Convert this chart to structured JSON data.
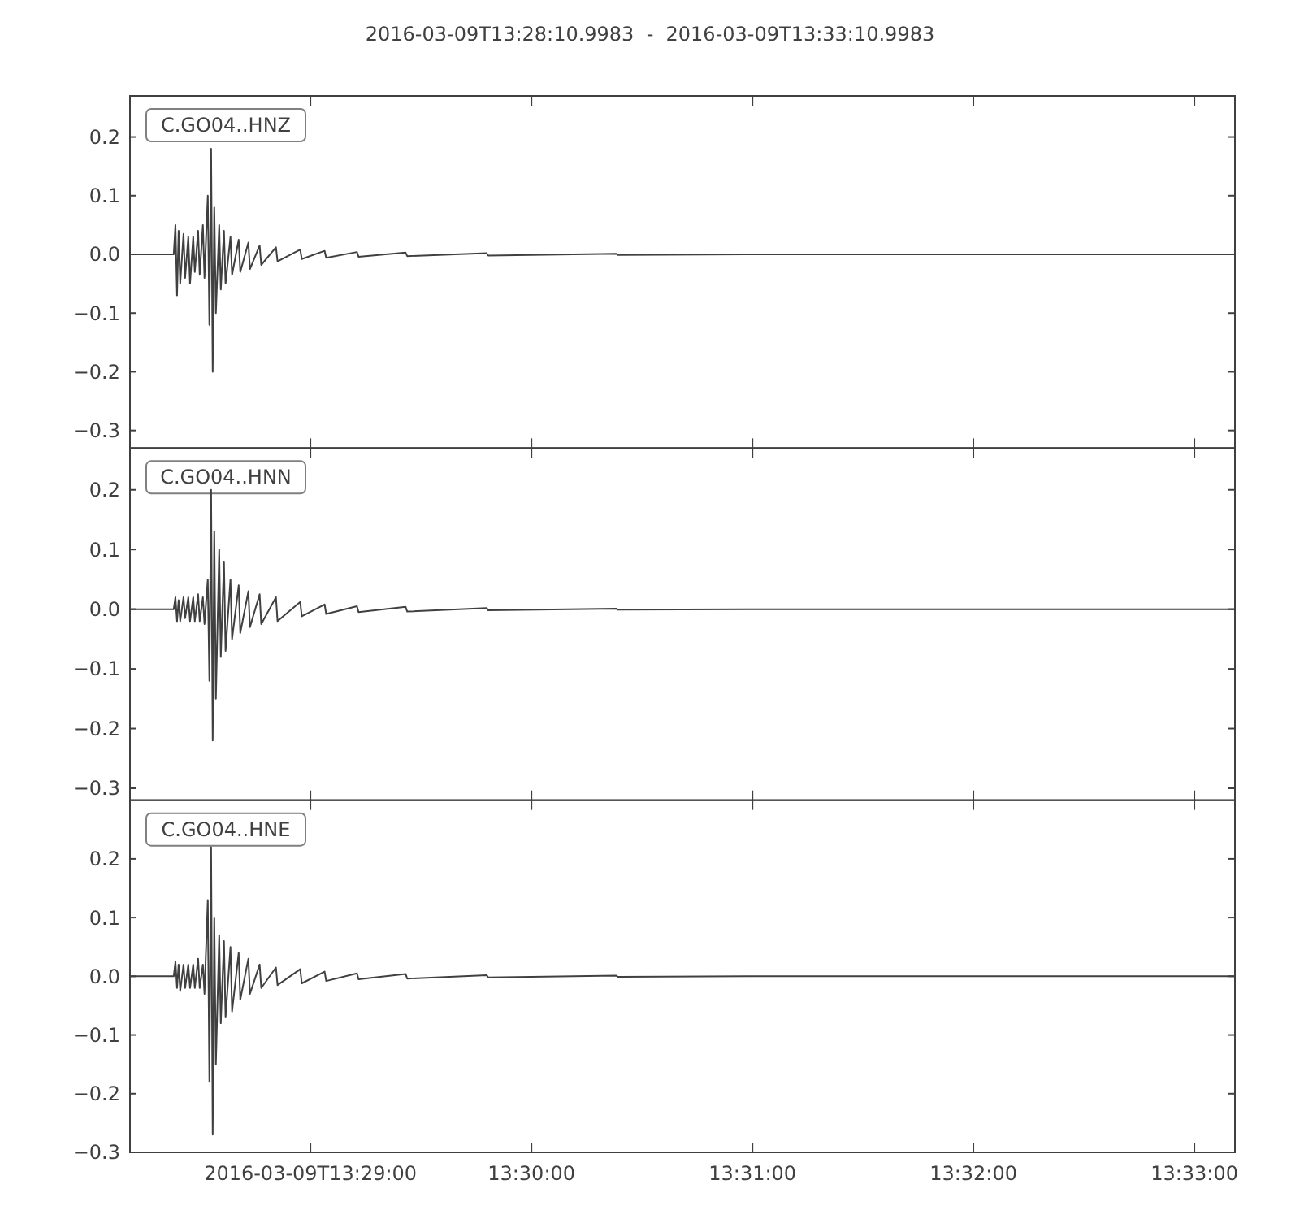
{
  "chart_data": [
    {
      "type": "line",
      "title": "2016-03-09T13:28:10.9983  -  2016-03-09T13:33:10.9983",
      "legend": "top left",
      "tick_labels": "y",
      "xlim": [
        13.46972,
        13.55306
      ],
      "xticks": [
        {
          "value": 13.48333,
          "label": null
        },
        {
          "value": 13.5,
          "label": null
        },
        {
          "value": 13.51667,
          "label": null
        },
        {
          "value": 13.53333,
          "label": null
        },
        {
          "value": 13.55,
          "label": null
        }
      ],
      "ylim": [
        -0.33,
        0.27
      ],
      "yticks": [
        {
          "value": -0.3,
          "label": "−0.3"
        },
        {
          "value": -0.2,
          "label": "−0.2"
        },
        {
          "value": -0.1,
          "label": "−0.1"
        },
        {
          "value": 0,
          "label": "0.0"
        },
        {
          "value": 0.1,
          "label": "0.1"
        },
        {
          "value": 0.2,
          "label": "0.2"
        }
      ],
      "x": [
        13.46972,
        13.47302,
        13.47315,
        13.47327,
        13.47339,
        13.47351,
        13.47376,
        13.47388,
        13.47412,
        13.47425,
        13.47449,
        13.47461,
        13.47486,
        13.47498,
        13.47522,
        13.47534,
        13.47559,
        13.47571,
        13.47584,
        13.47596,
        13.47608,
        13.4762,
        13.47645,
        13.47657,
        13.47681,
        13.47693,
        13.4773,
        13.47742,
        13.47792,
        13.47804,
        13.47865,
        13.47877,
        13.4795,
        13.47962,
        13.48073,
        13.48085,
        13.48256,
        13.48268,
        13.4844,
        13.48452,
        13.48684,
        13.48696,
        13.49051,
        13.49063,
        13.49662,
        13.49674,
        13.5064,
        13.50652,
        13.51619,
        13.553
      ],
      "series": [
        {
          "name": "C.GO04..HNZ",
          "color": "#404040",
          "values": [
            0,
            0,
            0.05,
            -0.07,
            0.04,
            -0.05,
            0.035,
            -0.04,
            0.03,
            -0.05,
            0.03,
            -0.03,
            0.04,
            -0.035,
            0.05,
            -0.04,
            0.1,
            -0.12,
            0.18,
            -0.2,
            0.08,
            -0.1,
            0.05,
            -0.06,
            0.04,
            -0.05,
            0.03,
            -0.035,
            0.025,
            -0.03,
            0.02,
            -0.025,
            0.015,
            -0.018,
            0.012,
            -0.012,
            0.008,
            -0.008,
            0.006,
            -0.006,
            0.004,
            -0.004,
            0.003,
            -0.003,
            0.002,
            -0.002,
            0.001,
            -0.001,
            0,
            0
          ]
        }
      ]
    },
    {
      "type": "line",
      "legend": "top left",
      "tick_labels": "y",
      "xlim": [
        13.46972,
        13.55306
      ],
      "xticks": [
        {
          "value": 13.48333,
          "label": null
        },
        {
          "value": 13.5,
          "label": null
        },
        {
          "value": 13.51667,
          "label": null
        },
        {
          "value": 13.53333,
          "label": null
        },
        {
          "value": 13.55,
          "label": null
        }
      ],
      "ylim": [
        -0.32,
        0.27
      ],
      "yticks": [
        {
          "value": -0.3,
          "label": "−0.3"
        },
        {
          "value": -0.2,
          "label": "−0.2"
        },
        {
          "value": -0.1,
          "label": "−0.1"
        },
        {
          "value": 0,
          "label": "0.0"
        },
        {
          "value": 0.1,
          "label": "0.1"
        },
        {
          "value": 0.2,
          "label": "0.2"
        }
      ],
      "x": [
        13.46972,
        13.47302,
        13.47315,
        13.47327,
        13.47339,
        13.47351,
        13.47376,
        13.47388,
        13.47412,
        13.47425,
        13.47449,
        13.47461,
        13.47486,
        13.47498,
        13.47522,
        13.47534,
        13.47559,
        13.47571,
        13.47584,
        13.47596,
        13.47608,
        13.4762,
        13.47645,
        13.47657,
        13.47681,
        13.47693,
        13.4773,
        13.47742,
        13.47792,
        13.47804,
        13.47865,
        13.47877,
        13.4795,
        13.47962,
        13.48073,
        13.48085,
        13.48256,
        13.48268,
        13.4844,
        13.48452,
        13.48684,
        13.48696,
        13.49051,
        13.49063,
        13.49662,
        13.49674,
        13.5064,
        13.50652,
        13.51619,
        13.553
      ],
      "series": [
        {
          "name": "C.GO04..HNN",
          "color": "#404040",
          "values": [
            0,
            0,
            0.02,
            -0.02,
            0.015,
            -0.02,
            0.02,
            -0.015,
            0.02,
            -0.02,
            0.02,
            -0.02,
            0.025,
            -0.02,
            0.02,
            -0.025,
            0.05,
            -0.12,
            0.2,
            -0.22,
            0.13,
            -0.15,
            0.1,
            -0.08,
            0.08,
            -0.07,
            0.05,
            -0.05,
            0.04,
            -0.04,
            0.03,
            -0.03,
            0.025,
            -0.025,
            0.02,
            -0.02,
            0.012,
            -0.012,
            0.008,
            -0.008,
            0.005,
            -0.005,
            0.004,
            -0.004,
            0.002,
            -0.002,
            0.001,
            -0.001,
            0,
            0
          ]
        }
      ]
    },
    {
      "type": "line",
      "legend": "top left",
      "xlim": [
        13.46972,
        13.55306
      ],
      "xticks": [
        {
          "value": 13.48333,
          "label": "2016-03-09T13:29:00"
        },
        {
          "value": 13.5,
          "label": "13:30:00"
        },
        {
          "value": 13.51667,
          "label": "13:31:00"
        },
        {
          "value": 13.53333,
          "label": "13:32:00"
        },
        {
          "value": 13.55,
          "label": "13:33:00"
        }
      ],
      "ylim": [
        -0.3,
        0.3
      ],
      "yticks": [
        {
          "value": -0.3,
          "label": "−0.3"
        },
        {
          "value": -0.2,
          "label": "−0.2"
        },
        {
          "value": -0.1,
          "label": "−0.1"
        },
        {
          "value": 0,
          "label": "0.0"
        },
        {
          "value": 0.1,
          "label": "0.1"
        },
        {
          "value": 0.2,
          "label": "0.2"
        }
      ],
      "x": [
        13.46972,
        13.47302,
        13.47315,
        13.47327,
        13.47339,
        13.47351,
        13.47376,
        13.47388,
        13.47412,
        13.47425,
        13.47449,
        13.47461,
        13.47486,
        13.47498,
        13.47522,
        13.47534,
        13.47559,
        13.47571,
        13.47584,
        13.47596,
        13.47608,
        13.4762,
        13.47645,
        13.47657,
        13.47681,
        13.47693,
        13.4773,
        13.47742,
        13.47792,
        13.47804,
        13.47865,
        13.47877,
        13.4795,
        13.47962,
        13.48073,
        13.48085,
        13.48256,
        13.48268,
        13.4844,
        13.48452,
        13.48684,
        13.48696,
        13.49051,
        13.49063,
        13.49662,
        13.49674,
        13.5064,
        13.50652,
        13.51619,
        13.553
      ],
      "series": [
        {
          "name": "C.GO04..HNE",
          "color": "#404040",
          "values": [
            0,
            0,
            0.025,
            -0.02,
            0.02,
            -0.025,
            0.02,
            -0.02,
            0.02,
            -0.02,
            0.02,
            -0.02,
            0.03,
            -0.02,
            0.02,
            -0.03,
            0.13,
            -0.18,
            0.22,
            -0.27,
            0.1,
            -0.15,
            0.07,
            -0.08,
            0.06,
            -0.07,
            0.05,
            -0.06,
            0.04,
            -0.04,
            0.03,
            -0.03,
            0.02,
            -0.02,
            0.015,
            -0.015,
            0.012,
            -0.012,
            0.008,
            -0.008,
            0.005,
            -0.005,
            0.004,
            -0.004,
            0.002,
            -0.002,
            0.001,
            -0.001,
            0,
            0
          ]
        }
      ]
    }
  ]
}
